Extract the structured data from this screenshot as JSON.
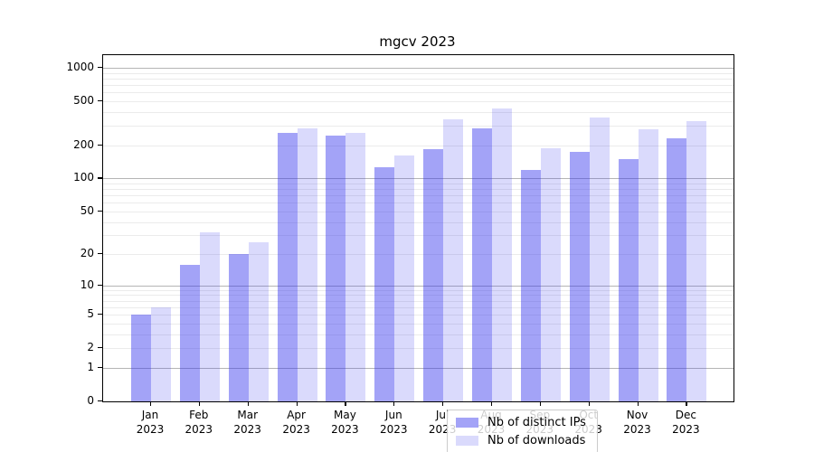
{
  "page": {
    "background": "#ffffff"
  },
  "chart_data": {
    "type": "bar",
    "title": "mgcv 2023",
    "xlabel": "",
    "ylabel": "",
    "yscale": "log1p",
    "grid": "on (log major + minor horizontal gridlines)",
    "legend_position": "bottom-center",
    "ylim": [
      0,
      1300
    ],
    "yticks": [
      {
        "value": 1000,
        "label": "1000"
      },
      {
        "value": 500,
        "label": "500"
      },
      {
        "value": 200,
        "label": "200"
      },
      {
        "value": 100,
        "label": "100"
      },
      {
        "value": 50,
        "label": "50"
      },
      {
        "value": 20,
        "label": "20"
      },
      {
        "value": 10,
        "label": "10"
      },
      {
        "value": 5,
        "label": "5"
      },
      {
        "value": 2,
        "label": "2"
      },
      {
        "value": 1,
        "label": "1"
      },
      {
        "value": 0,
        "label": "0"
      }
    ],
    "categories": [
      "Jan 2023",
      "Feb 2023",
      "Mar 2023",
      "Apr 2023",
      "May 2023",
      "Jun 2023",
      "Jul 2023",
      "Aug 2023",
      "Sep 2023",
      "Oct 2023",
      "Nov 2023",
      "Dec 2023"
    ],
    "series": [
      {
        "name": "Nb of distinct IPs",
        "color": "#3333ee",
        "alpha": 0.45,
        "apparent_color": "#a3a3f4",
        "values": [
          5,
          16,
          20,
          260,
          245,
          126,
          184,
          285,
          119,
          173,
          150,
          230
        ]
      },
      {
        "name": "Nb of downloads",
        "color": "#3333ee",
        "alpha": 0.18,
        "apparent_color": "#dadaf9",
        "values": [
          6,
          32,
          26,
          285,
          257,
          162,
          345,
          430,
          189,
          356,
          280,
          328
        ]
      }
    ]
  }
}
